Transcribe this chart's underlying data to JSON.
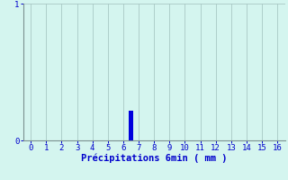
{
  "title": "",
  "xlabel": "Précipitations 6min ( mm )",
  "ylabel": "",
  "xlim": [
    -0.5,
    16.5
  ],
  "ylim": [
    0,
    1
  ],
  "yticks": [
    0,
    1
  ],
  "xticks": [
    0,
    1,
    2,
    3,
    4,
    5,
    6,
    7,
    8,
    9,
    10,
    11,
    12,
    13,
    14,
    15,
    16
  ],
  "bar_x": [
    6.5
  ],
  "bar_height": [
    0.22
  ],
  "bar_color": "#0000dd",
  "bar_width": 0.25,
  "background_color": "#d4f5ef",
  "grid_color": "#a8c8c4",
  "axis_color": "#7a9090",
  "tick_color": "#0000cc",
  "label_color": "#0000cc",
  "xlabel_fontsize": 7.5,
  "tick_fontsize": 6.5
}
